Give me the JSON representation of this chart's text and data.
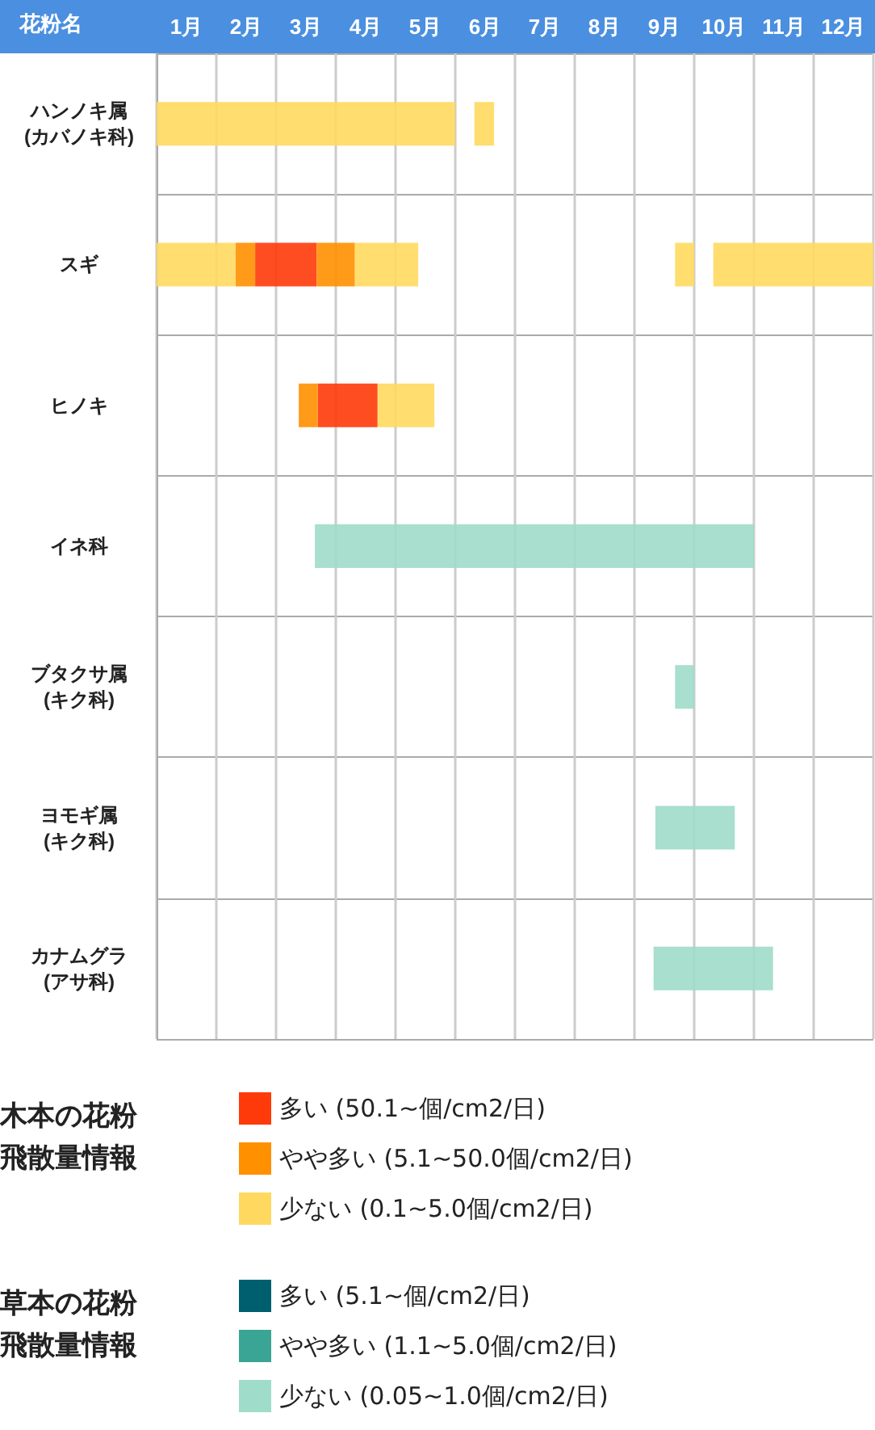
{
  "chart_data": {
    "type": "bar",
    "orientation": "horizontal",
    "ylabel": "花粉名",
    "categories": [
      "ハンノキ属\n(カバノキ科)",
      "スギ",
      "ヒノキ",
      "イネ科",
      "ブタクサ属\n(キク科)",
      "ヨモギ属\n(キク科)",
      "カナムグラ\n(アサ科)"
    ],
    "xlim": [
      0,
      12
    ],
    "xticks": [
      {
        "value": 0,
        "label": null
      },
      {
        "value": 1,
        "label": null
      },
      {
        "value": 2,
        "label": null
      },
      {
        "value": 3,
        "label": null
      },
      {
        "value": 4,
        "label": null
      },
      {
        "value": 5,
        "label": null
      },
      {
        "value": 6,
        "label": null
      },
      {
        "value": 7,
        "label": null
      },
      {
        "value": 8,
        "label": null
      },
      {
        "value": 9,
        "label": null
      },
      {
        "value": 10,
        "label": null
      },
      {
        "value": 11,
        "label": null
      },
      {
        "value": 12,
        "label": null
      },
      {
        "value": 0.5,
        "label": "1月"
      },
      {
        "value": 1.5,
        "label": "2月"
      },
      {
        "value": 2.5,
        "label": "3月"
      },
      {
        "value": 3.5,
        "label": "4月"
      },
      {
        "value": 4.5,
        "label": "5月"
      },
      {
        "value": 5.5,
        "label": "6月"
      },
      {
        "value": 6.5,
        "label": "7月"
      },
      {
        "value": 7.5,
        "label": "8月"
      },
      {
        "value": 8.5,
        "label": "9月"
      },
      {
        "value": 9.5,
        "label": "10月"
      },
      {
        "value": 10.5,
        "label": "11月"
      },
      {
        "value": 11.5,
        "label": "12月"
      }
    ],
    "grid": true,
    "legend": "bottom",
    "annotations": [
      "木本の花粉飛散量情報",
      "草本の花粉飛散量情報"
    ],
    "series": [
      {
        "name": "多い (50.1~個/cm2/日)",
        "color": "#ff3a0a",
        "base": [
          null,
          1.65,
          2.7,
          null,
          null,
          null,
          null
        ],
        "values": [
          null,
          1.03,
          1.0,
          null,
          null,
          null,
          null
        ]
      },
      {
        "name": "やや多い (5.1~50.0個/cm2/日)",
        "color": "#ff9000",
        "base": [
          null,
          1.32,
          2.38,
          null,
          null,
          null,
          null
        ],
        "values": [
          null,
          0.33,
          0.32,
          null,
          null,
          null,
          null
        ]
      },
      {
        "name": "少ない (0.1~5.0個/cm2/日)",
        "color": "#ffd95f",
        "base": [
          0,
          0,
          3.7,
          null,
          null,
          null,
          null
        ],
        "values": [
          5.0,
          1.32,
          0.95,
          null,
          null,
          null,
          null
        ]
      },
      {
        "name": "多い (5.1~個/cm2/日)",
        "color": "#005f6e",
        "base": [
          null,
          null,
          null,
          null,
          null,
          null,
          null
        ],
        "values": [
          null,
          null,
          null,
          null,
          null,
          null,
          null
        ]
      },
      {
        "name": "やや多い (1.1~5.0個/cm2/日)",
        "color": "#3aa594",
        "base": [
          null,
          null,
          null,
          null,
          null,
          null,
          null
        ],
        "values": [
          null,
          null,
          null,
          null,
          null,
          null,
          null
        ]
      },
      {
        "name": "少ない (0.05~1.0個/cm2/日)",
        "color": "#9fdcca",
        "base": [
          null,
          null,
          null,
          2.65,
          8.68,
          8.35,
          8.32
        ],
        "values": [
          null,
          null,
          null,
          7.35,
          0.32,
          1.33,
          2.0
        ]
      },
      {
        "color": "#ff9000",
        "base": [
          null,
          2.68,
          null,
          null,
          null,
          null,
          null
        ],
        "values": [
          null,
          0.64,
          null,
          null,
          null,
          null,
          null
        ]
      },
      {
        "color": "#ffd95f",
        "base": [
          5.32,
          3.32,
          null,
          null,
          null,
          null,
          null
        ],
        "values": [
          0.33,
          1.06,
          null,
          null,
          null,
          null,
          null
        ]
      },
      {
        "color": "#ffd95f",
        "base": [
          null,
          8.68,
          null,
          null,
          null,
          null,
          null
        ],
        "values": [
          null,
          0.32,
          null,
          null,
          null,
          null,
          null
        ]
      },
      {
        "color": "#ffd95f",
        "base": [
          null,
          9.32,
          null,
          null,
          null,
          null,
          null
        ],
        "values": [
          null,
          2.68,
          null,
          null,
          null,
          null,
          null
        ]
      }
    ]
  }
}
